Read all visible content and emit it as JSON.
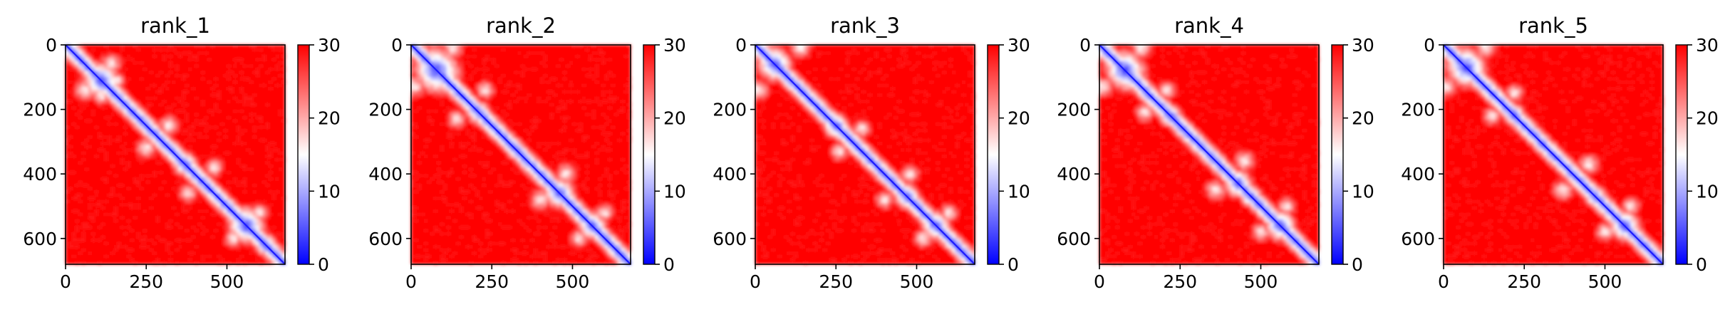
{
  "chart_data": [
    {
      "type": "heatmap",
      "title": "rank_1",
      "size": 680,
      "xticks": [
        0,
        250,
        500
      ],
      "yticks": [
        0,
        200,
        400,
        600
      ],
      "colorbar": {
        "min": 0,
        "max": 30,
        "ticks": [
          0,
          10,
          20,
          30
        ]
      },
      "colormap": [
        "#0000ff",
        "#ffffff",
        "#ff0000"
      ],
      "diag_blobs": [
        [
          110,
          55,
          3
        ],
        [
          210,
          25,
          2.5
        ],
        [
          370,
          35,
          3
        ],
        [
          470,
          25,
          2.5
        ],
        [
          560,
          55,
          2.5
        ],
        [
          620,
          30,
          2
        ]
      ],
      "offdiag_features": [
        [
          110,
          160,
          30
        ],
        [
          60,
          140,
          40
        ],
        [
          380,
          460,
          35
        ],
        [
          250,
          320,
          40
        ],
        [
          520,
          600,
          35
        ]
      ]
    },
    {
      "type": "heatmap",
      "title": "rank_2",
      "size": 680,
      "xticks": [
        0,
        250,
        500
      ],
      "yticks": [
        0,
        200,
        400,
        600
      ],
      "colorbar": {
        "min": 0,
        "max": 30,
        "ticks": [
          0,
          10,
          20,
          30
        ]
      },
      "colormap": [
        "#0000ff",
        "#ffffff",
        "#ff0000"
      ],
      "diag_blobs": [
        [
          80,
          70,
          2.5
        ],
        [
          210,
          35,
          3.5
        ],
        [
          460,
          45,
          3
        ],
        [
          560,
          40,
          2.5
        ],
        [
          630,
          25,
          2
        ]
      ],
      "offdiag_features": [
        [
          10,
          130,
          40
        ],
        [
          140,
          230,
          35
        ],
        [
          400,
          480,
          40
        ],
        [
          520,
          600,
          35
        ]
      ]
    },
    {
      "type": "heatmap",
      "title": "rank_3",
      "size": 680,
      "xticks": [
        0,
        250,
        500
      ],
      "yticks": [
        0,
        200,
        400,
        600
      ],
      "colorbar": {
        "min": 0,
        "max": 30,
        "ticks": [
          0,
          10,
          20,
          30
        ]
      },
      "colormap": [
        "#0000ff",
        "#ffffff",
        "#ff0000"
      ],
      "diag_blobs": [
        [
          60,
          50,
          2.5
        ],
        [
          250,
          35,
          2
        ],
        [
          370,
          25,
          3.5
        ],
        [
          470,
          35,
          2.5
        ],
        [
          560,
          40,
          2.5
        ]
      ],
      "offdiag_features": [
        [
          10,
          140,
          40
        ],
        [
          260,
          330,
          35
        ],
        [
          400,
          480,
          35
        ],
        [
          520,
          600,
          35
        ]
      ]
    },
    {
      "type": "heatmap",
      "title": "rank_4",
      "size": 680,
      "xticks": [
        0,
        250,
        500
      ],
      "yticks": [
        0,
        200,
        400,
        600
      ],
      "colorbar": {
        "min": 0,
        "max": 30,
        "ticks": [
          0,
          10,
          20,
          30
        ]
      },
      "colormap": [
        "#0000ff",
        "#ffffff",
        "#ff0000"
      ],
      "diag_blobs": [
        [
          80,
          60,
          2.5
        ],
        [
          220,
          30,
          2
        ],
        [
          430,
          40,
          2.5
        ],
        [
          470,
          30,
          2
        ],
        [
          560,
          45,
          2.5
        ]
      ],
      "offdiag_features": [
        [
          10,
          130,
          40
        ],
        [
          140,
          210,
          35
        ],
        [
          360,
          450,
          40
        ],
        [
          500,
          580,
          35
        ]
      ]
    },
    {
      "type": "heatmap",
      "title": "rank_5",
      "size": 680,
      "xticks": [
        0,
        250,
        500
      ],
      "yticks": [
        0,
        200,
        400,
        600
      ],
      "colorbar": {
        "min": 0,
        "max": 30,
        "ticks": [
          0,
          10,
          20,
          30
        ]
      },
      "colormap": [
        "#0000ff",
        "#ffffff",
        "#ff0000"
      ],
      "diag_blobs": [
        [
          70,
          60,
          2.5
        ],
        [
          220,
          30,
          2
        ],
        [
          470,
          30,
          2.5
        ],
        [
          560,
          45,
          2.5
        ],
        [
          630,
          25,
          2
        ]
      ],
      "offdiag_features": [
        [
          10,
          130,
          40
        ],
        [
          150,
          220,
          35
        ],
        [
          370,
          450,
          40
        ],
        [
          500,
          580,
          35
        ]
      ]
    }
  ]
}
